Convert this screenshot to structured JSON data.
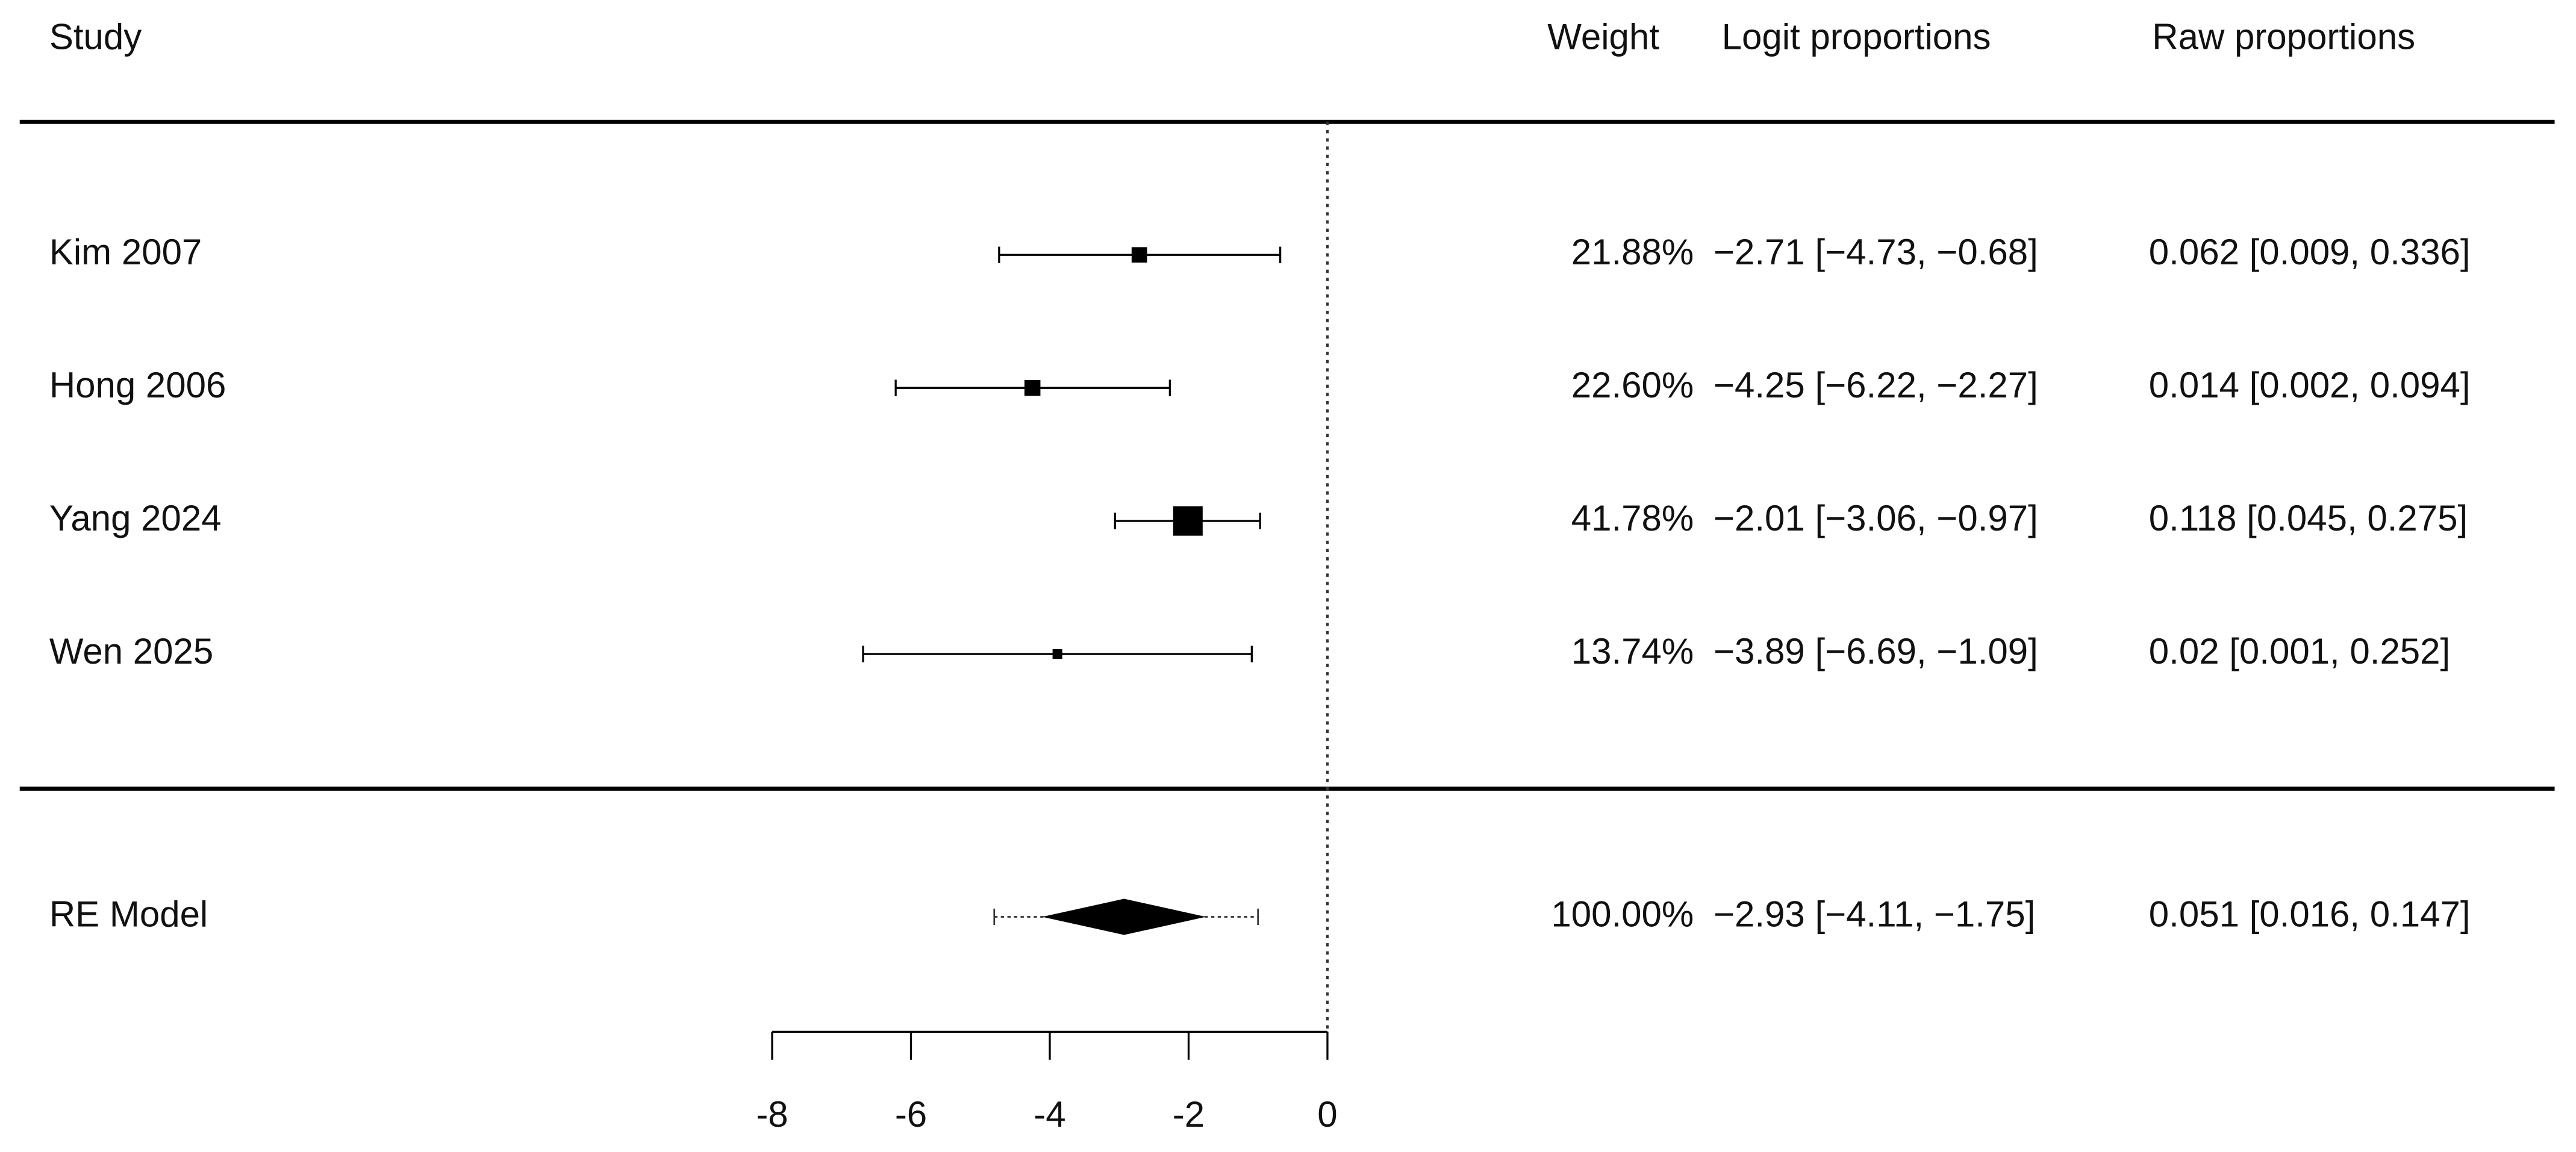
{
  "chart_data": {
    "type": "forest",
    "study_header": "Study",
    "weight_header": "Weight",
    "logit_header": "Logit proportions",
    "raw_header": "Raw proportions",
    "categories": [
      "Kim 2007",
      "Hong 2006",
      "Yang 2024",
      "Wen 2025"
    ],
    "values": [
      -2.71,
      -4.25,
      -2.01,
      -3.89
    ],
    "lower": [
      -4.73,
      -6.22,
      -3.06,
      -6.69
    ],
    "upper": [
      -0.68,
      -2.27,
      -0.97,
      -1.09
    ],
    "weights": [
      21.88,
      22.6,
      41.78,
      13.74
    ],
    "weight_labels": [
      "21.88%",
      "22.60%",
      "41.78%",
      "13.74%"
    ],
    "value_labels": [
      "−2.71 [−4.73, −0.68]",
      "−4.25 [−6.22, −2.27]",
      "−2.01 [−3.06, −0.97]",
      "−3.89 [−6.69, −1.09]"
    ],
    "raw_labels": [
      "0.062 [0.009, 0.336]",
      "0.014 [0.002, 0.094]",
      "0.118 [0.045, 0.275]",
      "0.02 [0.001, 0.252]"
    ],
    "summary": {
      "name": "RE Model",
      "value": -2.93,
      "lower": -4.11,
      "upper": -1.75,
      "pi_lower": -4.8,
      "pi_upper": -1.0,
      "weight": 100,
      "weight_label": "100.00%",
      "value_label": "−2.93 [−4.11, −1.75]",
      "raw_label": "0.051 [0.016, 0.147]"
    },
    "refline": 0,
    "xlim": [
      -8,
      0
    ],
    "xticks": [
      -8,
      -6,
      -4,
      -2,
      0
    ],
    "color": "#000000"
  }
}
